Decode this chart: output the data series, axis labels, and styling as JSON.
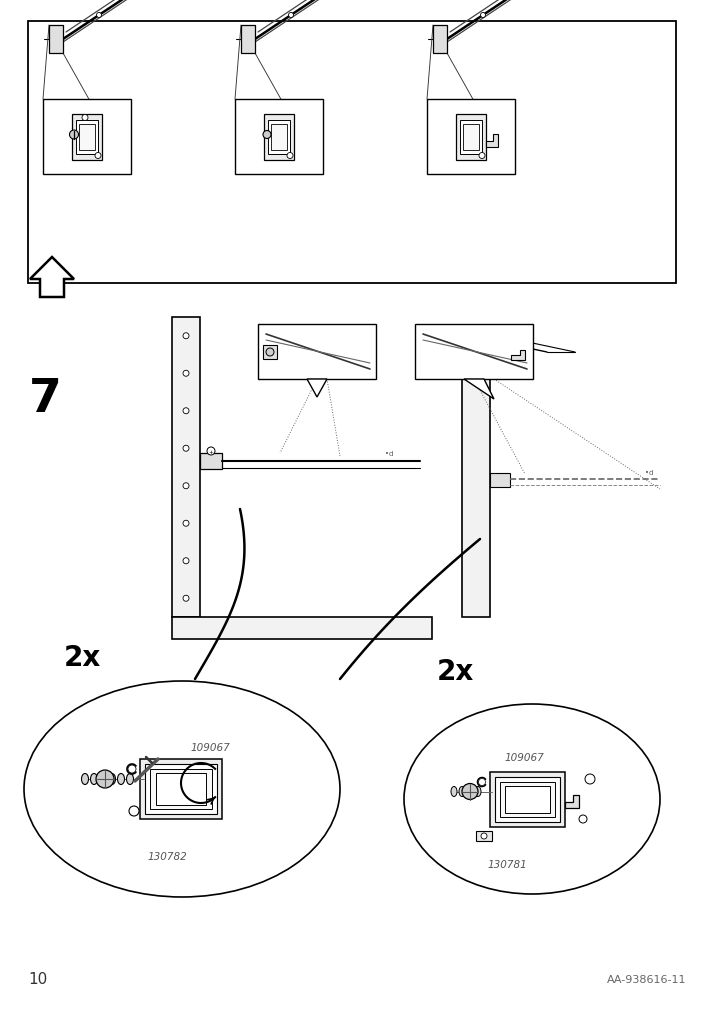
{
  "page_number": "10",
  "article_code": "AA-938616-11",
  "step_number": "7",
  "bg_color": "#ffffff",
  "line_color": "#000000",
  "figsize": [
    7.14,
    10.12
  ],
  "dpi": 100
}
